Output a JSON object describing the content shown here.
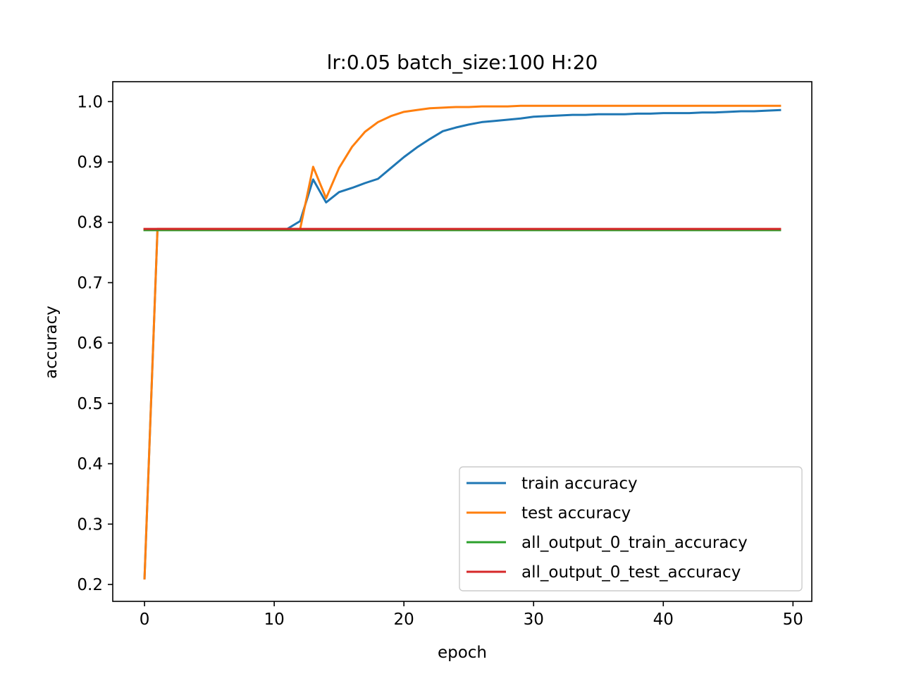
{
  "chart_data": {
    "type": "line",
    "title": "lr:0.05 batch_size:100 H:20",
    "xlabel": "epoch",
    "ylabel": "accuracy",
    "xlim": [
      -2.45,
      51.45
    ],
    "ylim": [
      0.172,
      1.033
    ],
    "xticks": [
      0,
      10,
      20,
      30,
      40,
      50
    ],
    "xtick_labels": [
      "0",
      "10",
      "20",
      "30",
      "40",
      "50"
    ],
    "yticks": [
      0.2,
      0.3,
      0.4,
      0.5,
      0.6,
      0.7,
      0.8,
      0.9,
      1.0
    ],
    "ytick_labels": [
      "0.2",
      "0.3",
      "0.4",
      "0.5",
      "0.6",
      "0.7",
      "0.8",
      "0.9",
      "1.0"
    ],
    "grid": false,
    "legend_position": "lower-right",
    "x": [
      0,
      1,
      2,
      3,
      4,
      5,
      6,
      7,
      8,
      9,
      10,
      11,
      12,
      13,
      14,
      15,
      16,
      17,
      18,
      19,
      20,
      21,
      22,
      23,
      24,
      25,
      26,
      27,
      28,
      29,
      30,
      31,
      32,
      33,
      34,
      35,
      36,
      37,
      38,
      39,
      40,
      41,
      42,
      43,
      44,
      45,
      46,
      47,
      48,
      49
    ],
    "series": [
      {
        "name": "train accuracy",
        "color": "#1f77b4",
        "values": [
          0.21,
          0.789,
          0.789,
          0.789,
          0.789,
          0.789,
          0.789,
          0.789,
          0.789,
          0.789,
          0.789,
          0.789,
          0.802,
          0.871,
          0.833,
          0.85,
          0.857,
          0.865,
          0.872,
          0.89,
          0.908,
          0.924,
          0.938,
          0.951,
          0.957,
          0.962,
          0.966,
          0.968,
          0.97,
          0.972,
          0.975,
          0.976,
          0.977,
          0.978,
          0.978,
          0.979,
          0.979,
          0.979,
          0.98,
          0.98,
          0.981,
          0.981,
          0.981,
          0.982,
          0.982,
          0.983,
          0.984,
          0.984,
          0.985,
          0.986
        ]
      },
      {
        "name": "test accuracy",
        "color": "#ff7f0e",
        "values": [
          0.21,
          0.789,
          0.789,
          0.789,
          0.789,
          0.789,
          0.789,
          0.789,
          0.789,
          0.789,
          0.789,
          0.789,
          0.789,
          0.892,
          0.84,
          0.89,
          0.925,
          0.95,
          0.966,
          0.976,
          0.983,
          0.986,
          0.989,
          0.99,
          0.991,
          0.991,
          0.992,
          0.992,
          0.992,
          0.993,
          0.993,
          0.993,
          0.993,
          0.993,
          0.993,
          0.993,
          0.993,
          0.993,
          0.993,
          0.993,
          0.993,
          0.993,
          0.993,
          0.993,
          0.993,
          0.993,
          0.993,
          0.993,
          0.993,
          0.993
        ]
      },
      {
        "name": "all_output_0_train_accuracy",
        "color": "#2ca02c",
        "values": [
          0.787,
          0.787,
          0.787,
          0.787,
          0.787,
          0.787,
          0.787,
          0.787,
          0.787,
          0.787,
          0.787,
          0.787,
          0.787,
          0.787,
          0.787,
          0.787,
          0.787,
          0.787,
          0.787,
          0.787,
          0.787,
          0.787,
          0.787,
          0.787,
          0.787,
          0.787,
          0.787,
          0.787,
          0.787,
          0.787,
          0.787,
          0.787,
          0.787,
          0.787,
          0.787,
          0.787,
          0.787,
          0.787,
          0.787,
          0.787,
          0.787,
          0.787,
          0.787,
          0.787,
          0.787,
          0.787,
          0.787,
          0.787,
          0.787,
          0.787
        ]
      },
      {
        "name": "all_output_0_test_accuracy",
        "color": "#d62728",
        "values": [
          0.789,
          0.789,
          0.789,
          0.789,
          0.789,
          0.789,
          0.789,
          0.789,
          0.789,
          0.789,
          0.789,
          0.789,
          0.789,
          0.789,
          0.789,
          0.789,
          0.789,
          0.789,
          0.789,
          0.789,
          0.789,
          0.789,
          0.789,
          0.789,
          0.789,
          0.789,
          0.789,
          0.789,
          0.789,
          0.789,
          0.789,
          0.789,
          0.789,
          0.789,
          0.789,
          0.789,
          0.789,
          0.789,
          0.789,
          0.789,
          0.789,
          0.789,
          0.789,
          0.789,
          0.789,
          0.789,
          0.789,
          0.789,
          0.789,
          0.789
        ]
      }
    ]
  }
}
